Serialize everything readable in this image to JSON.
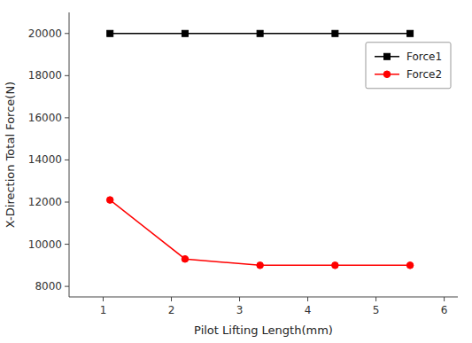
{
  "chart_data": {
    "type": "line",
    "xlabel": "Pilot Lifting Length(mm)",
    "ylabel": "X-Direction Total Force(N)",
    "x": [
      1.1,
      2.2,
      3.3,
      4.4,
      5.5
    ],
    "series": [
      {
        "name": "Force1",
        "color": "#000000",
        "marker": "square",
        "line_style": "solid",
        "values": [
          20000,
          20000,
          20000,
          20000,
          20000
        ]
      },
      {
        "name": "Force2",
        "color": "#ff0000",
        "marker": "circle",
        "line_style": "solid",
        "values": [
          12100,
          9300,
          9000,
          9000,
          9000
        ]
      }
    ],
    "xlim": [
      0.5,
      6.2
    ],
    "ylim": [
      7500,
      21000
    ],
    "xticks": [
      1,
      2,
      3,
      4,
      5,
      6
    ],
    "yticks": [
      8000,
      10000,
      12000,
      14000,
      16000,
      18000,
      20000
    ],
    "grid": false,
    "legend": "upper right"
  }
}
